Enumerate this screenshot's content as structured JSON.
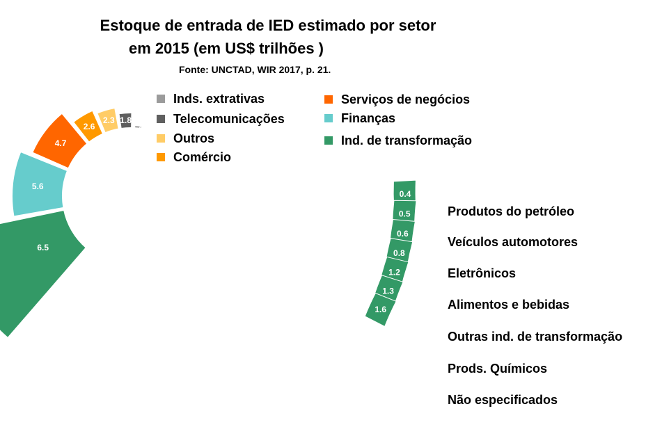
{
  "chart_data": {
    "type": "pie",
    "title_line1": "Estoque de entrada de IED estimado por setor",
    "title_line2": "em 2015  (em US$ trilhões )",
    "source": "Fonte: UNCTAD, WIR 2017, p. 21.",
    "legend": [
      {
        "label": "Inds. extrativas",
        "color": "#9b9b9b"
      },
      {
        "label": "Telecomunicações",
        "color": "#5f5f5f"
      },
      {
        "label": "Outros",
        "color": "#ffcc66"
      },
      {
        "label": "Comércio",
        "color": "#ff9900"
      },
      {
        "label": "Serviços de negócios",
        "color": "#ff6600"
      },
      {
        "label": "Finanças",
        "color": "#66cccc"
      },
      {
        "label": "Ind. de transformação",
        "color": "#339966"
      }
    ],
    "sectors": [
      {
        "name": "Inds. extrativas",
        "value": 1.4,
        "label": "1.4",
        "color": "#9b9b9b"
      },
      {
        "name": "Telecomunicações",
        "value": 1.8,
        "label": "1.8",
        "color": "#5f5f5f"
      },
      {
        "name": "Outros",
        "value": 2.3,
        "label": "2.3",
        "color": "#ffcc66"
      },
      {
        "name": "Comércio",
        "value": 2.6,
        "label": "2.6",
        "color": "#ff9900"
      },
      {
        "name": "Serviços de negócios",
        "value": 4.7,
        "label": "4.7",
        "color": "#ff6600"
      },
      {
        "name": "Finanças",
        "value": 5.6,
        "label": "5.6",
        "color": "#66cccc"
      },
      {
        "name": "Ind. de transformação",
        "value": 6.5,
        "label": "6.5",
        "color": "#339966"
      }
    ],
    "breakdown": {
      "parent": "Ind. de transformação",
      "color": "#339966",
      "items": [
        {
          "name": "Produtos do petróleo",
          "value": 0.4,
          "label": "0.4"
        },
        {
          "name": "Veículos automotores",
          "value": 0.5,
          "label": "0.5"
        },
        {
          "name": "Eletrônicos",
          "value": 0.6,
          "label": "0.6"
        },
        {
          "name": "Alimentos e bebidas",
          "value": 0.8,
          "label": "0.8"
        },
        {
          "name": "Outras ind. de transformação",
          "value": 1.2,
          "label": "1.2"
        },
        {
          "name": "Prods. Químicos",
          "value": 1.3,
          "label": "1.3"
        },
        {
          "name": "Não especificados",
          "value": 1.6,
          "label": "1.6"
        }
      ]
    }
  }
}
